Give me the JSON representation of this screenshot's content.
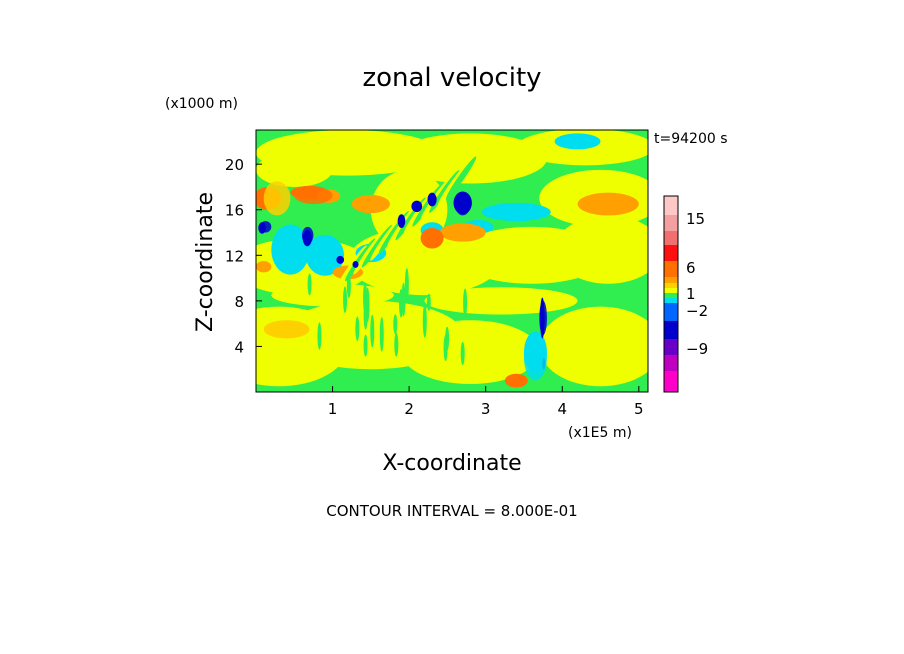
{
  "chart_data": {
    "type": "heatmap",
    "title": "zonal velocity",
    "xlabel": "X-coordinate",
    "ylabel": "Z-coordinate",
    "x_units": "(x1E5 m)",
    "y_units": "(x1000 m)",
    "time_label": "t=94200 s",
    "footer": "CONTOUR INTERVAL = 8.000E-01",
    "xlim": [
      0,
      5.12
    ],
    "ylim": [
      0,
      23
    ],
    "x_ticks": [
      1,
      2,
      3,
      4,
      5
    ],
    "y_ticks": [
      4,
      8,
      12,
      16,
      20
    ],
    "grid": false,
    "colorbar": {
      "position": "right",
      "tick_labels": [
        "15",
        "6",
        "1",
        "−2",
        "−9"
      ],
      "tick_values": [
        15,
        6,
        1,
        -2,
        -9
      ],
      "colors": [
        "#ffc8c8",
        "#f5a0a0",
        "#f07070",
        "#ff1010",
        "#ff7000",
        "#ffa000",
        "#ffd000",
        "#f0ff00",
        "#30ee50",
        "#00ddee",
        "#0066ff",
        "#0000cc",
        "#6a00c8",
        "#c000c0",
        "#ff00c8"
      ],
      "level_values": [
        19,
        16,
        13,
        10,
        7,
        5,
        3,
        1,
        -1,
        -2,
        -4,
        -6,
        -9,
        -12,
        -15
      ]
    },
    "background_color": "#30ee50",
    "regions": [
      {
        "value": 1,
        "color": "#f0ff00",
        "x": [
          0.0,
          5.12
        ],
        "y": [
          0.0,
          8.0
        ]
      },
      {
        "value": 1,
        "color": "#f0ff00",
        "x": [
          0.0,
          5.12
        ],
        "y": [
          8.0,
          23.0
        ]
      },
      {
        "value": 3,
        "color": "#ffd000",
        "x": [
          0.1,
          0.45
        ],
        "y": [
          15.5,
          18.5
        ]
      },
      {
        "value": 7,
        "color": "#ff7000",
        "x": [
          0.5,
          1.0
        ],
        "y": [
          16.5,
          18.0
        ]
      },
      {
        "value": -6,
        "color": "#0000cc",
        "x": [
          0.05,
          0.2
        ],
        "y": [
          14.0,
          15.0
        ]
      },
      {
        "value": -6,
        "color": "#0000cc",
        "x": [
          0.6,
          0.75
        ],
        "y": [
          13.0,
          14.5
        ]
      },
      {
        "value": -6,
        "color": "#0000cc",
        "x": [
          2.6,
          2.8
        ],
        "y": [
          15.5,
          17.5
        ]
      },
      {
        "value": -6,
        "color": "#0000cc",
        "x": [
          3.7,
          3.8
        ],
        "y": [
          5.0,
          8.0
        ]
      },
      {
        "value": -2,
        "color": "#00ddee",
        "x": [
          3.2,
          3.7
        ],
        "y": [
          15.0,
          16.5
        ]
      },
      {
        "value": -2,
        "color": "#00ddee",
        "x": [
          3.5,
          3.8
        ],
        "y": [
          1.0,
          5.0
        ]
      }
    ]
  }
}
